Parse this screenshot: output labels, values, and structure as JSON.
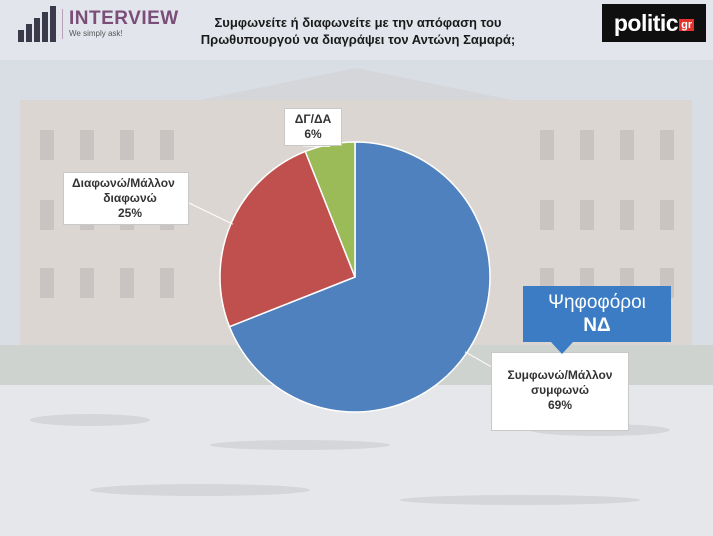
{
  "header": {
    "brand_name": "INTERVIEW",
    "brand_tagline": "We simply ask!",
    "title_line1": "Συμφωνείτε ή διαφωνείτε με την απόφαση του",
    "title_line2": "Πρωθυπουργού να διαγράψει τον Αντώνη Σαμαρά;",
    "source_logo_word": "politic",
    "source_logo_suffix": "gr"
  },
  "badge": {
    "line1": "Ψηφοφόροι",
    "line2": "ΝΔ",
    "color": "#3c7cc4"
  },
  "chart_data": {
    "type": "pie",
    "title": "Συμφωνείτε ή διαφωνείτε με την απόφαση του Πρωθυπουργού να διαγράψει τον Αντώνη Σαμαρά;",
    "slices": [
      {
        "label_lines": [
          "Συμφωνώ/Μάλλον",
          "συμφωνώ"
        ],
        "value": 69,
        "value_label": "69%",
        "color": "#4e81bd"
      },
      {
        "label_lines": [
          "Διαφωνώ/Μάλλον",
          "διαφωνώ"
        ],
        "value": 25,
        "value_label": "25%",
        "color": "#c0504d"
      },
      {
        "label_lines": [
          "ΔΓ/ΔΑ"
        ],
        "value": 6,
        "value_label": "6%",
        "color": "#9bbb59"
      }
    ]
  }
}
